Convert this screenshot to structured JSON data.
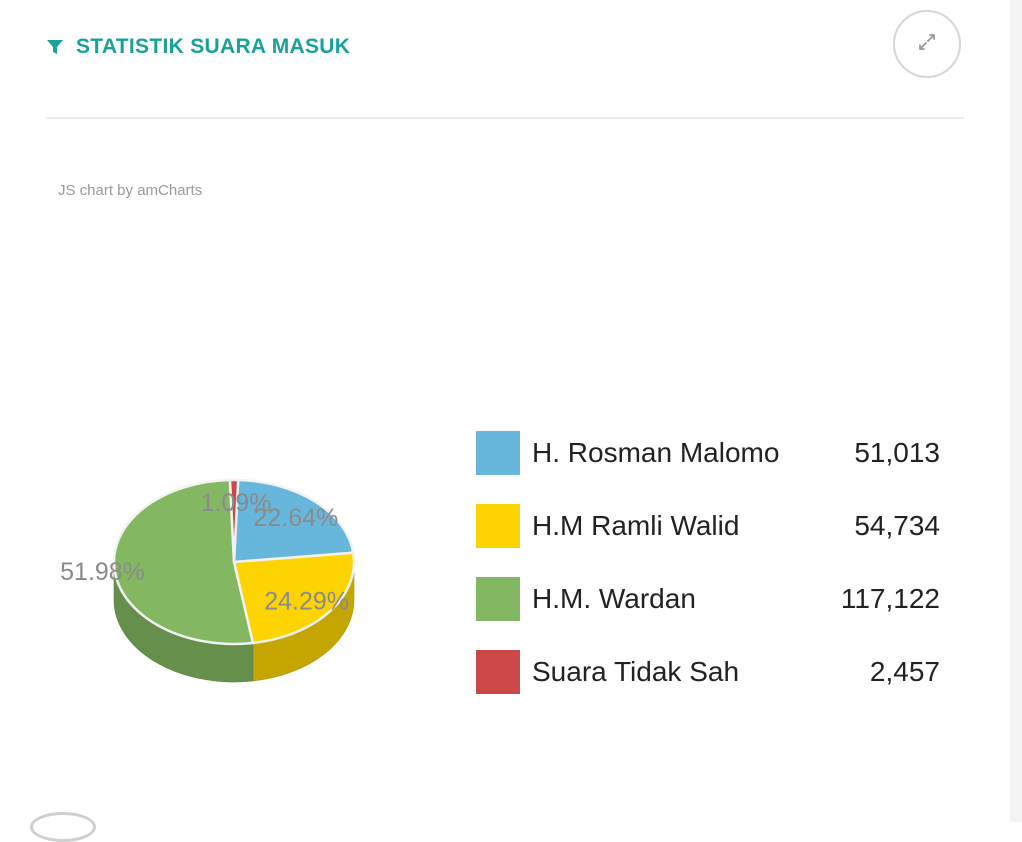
{
  "header": {
    "title": "STATISTIK SUARA MASUK",
    "filter_icon": "filter-icon",
    "expand_icon": "expand-arrows-icon"
  },
  "credit": "JS chart by amCharts",
  "colors": {
    "accent": "#1aa19a"
  },
  "chart_data": {
    "type": "pie",
    "title": "",
    "series": [
      {
        "name": "H. Rosman Malomo",
        "value": 51013,
        "display": "51,013",
        "percent_label": "22.64%",
        "color": "#67b7dc"
      },
      {
        "name": "H.M Ramli Walid",
        "value": 54734,
        "display": "54,734",
        "percent_label": "24.29%",
        "color": "#fdd400"
      },
      {
        "name": "H.M. Wardan",
        "value": 117122,
        "display": "117,122",
        "percent_label": "51.98%",
        "color": "#84b761"
      },
      {
        "name": "Suara Tidak Sah",
        "value": 2457,
        "display": "2,457",
        "percent_label": "1.09%",
        "color": "#cc4748"
      }
    ],
    "style": "3d",
    "legend_position": "right"
  }
}
